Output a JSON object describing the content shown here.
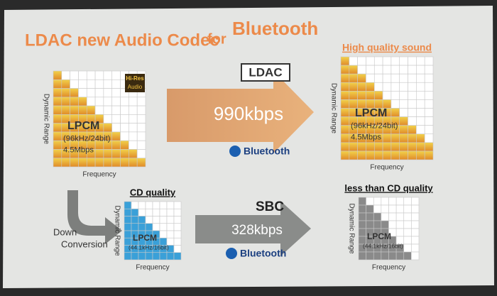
{
  "title": {
    "main": "LDAC new Audio Codec",
    "joiner": "for",
    "brand": "Bluetooth"
  },
  "source": {
    "badge": [
      "Hi-Res",
      "Audio"
    ],
    "label": "LPCM",
    "format": "(96kHz/24bit)",
    "rate": "4.5Mbps",
    "y_axis": "Dynamic Range",
    "x_axis": "Frequency"
  },
  "ldac": {
    "codec": "LDAC",
    "rate": "990kbps",
    "brand": "Bluetooth"
  },
  "ldac_result": {
    "heading": "High quality sound",
    "label": "LPCM",
    "format": "(96kHz/24bit)",
    "rate": "4.5Mbps",
    "y_axis": "Dynamic Range",
    "x_axis": "Frequency"
  },
  "down_conversion": [
    "Down",
    "Conversion"
  ],
  "cd": {
    "heading": "CD quality",
    "label": "LPCM",
    "format": "(44.1kHz/16bit)",
    "y_axis": "Dynamic Range",
    "x_axis": "Frequency"
  },
  "sbc": {
    "codec": "SBC",
    "rate": "328kbps",
    "brand": "Bluetooth"
  },
  "sbc_result": {
    "heading": "less than CD quality",
    "label": "LPCM",
    "format": "(44.1kHz/16bit)",
    "y_axis": "Dynamic Range",
    "x_axis": "Frequency"
  }
}
